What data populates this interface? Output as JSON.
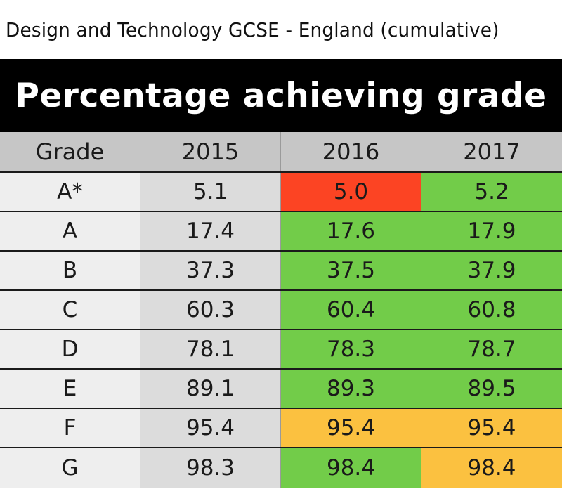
{
  "title": "Design and Technology GCSE - England (cumulative)",
  "chart_data": {
    "type": "table",
    "title": "Design and Technology GCSE - England (cumulative)",
    "heading": "Percentage achieving grade",
    "columns": [
      "Grade",
      "2015",
      "2016",
      "2017"
    ],
    "rows": [
      {
        "grade": "A*",
        "values": [
          "5.1",
          "5.0",
          "5.2"
        ],
        "colors": [
          "",
          "red",
          "green"
        ]
      },
      {
        "grade": "A",
        "values": [
          "17.4",
          "17.6",
          "17.9"
        ],
        "colors": [
          "",
          "green",
          "green"
        ]
      },
      {
        "grade": "B",
        "values": [
          "37.3",
          "37.5",
          "37.9"
        ],
        "colors": [
          "",
          "green",
          "green"
        ]
      },
      {
        "grade": "C",
        "values": [
          "60.3",
          "60.4",
          "60.8"
        ],
        "colors": [
          "",
          "green",
          "green"
        ]
      },
      {
        "grade": "D",
        "values": [
          "78.1",
          "78.3",
          "78.7"
        ],
        "colors": [
          "",
          "green",
          "green"
        ]
      },
      {
        "grade": "E",
        "values": [
          "89.1",
          "89.3",
          "89.5"
        ],
        "colors": [
          "",
          "green",
          "green"
        ]
      },
      {
        "grade": "F",
        "values": [
          "95.4",
          "95.4",
          "95.4"
        ],
        "colors": [
          "",
          "amber",
          "amber"
        ]
      },
      {
        "grade": "G",
        "values": [
          "98.3",
          "98.4",
          "98.4"
        ],
        "colors": [
          "",
          "green",
          "amber"
        ]
      }
    ]
  },
  "colors": {
    "increase": "#72cc49",
    "decrease": "#fc4423",
    "unchanged": "#fbc140",
    "header_bg": "#c6c6c6",
    "banner_bg": "#000000"
  }
}
